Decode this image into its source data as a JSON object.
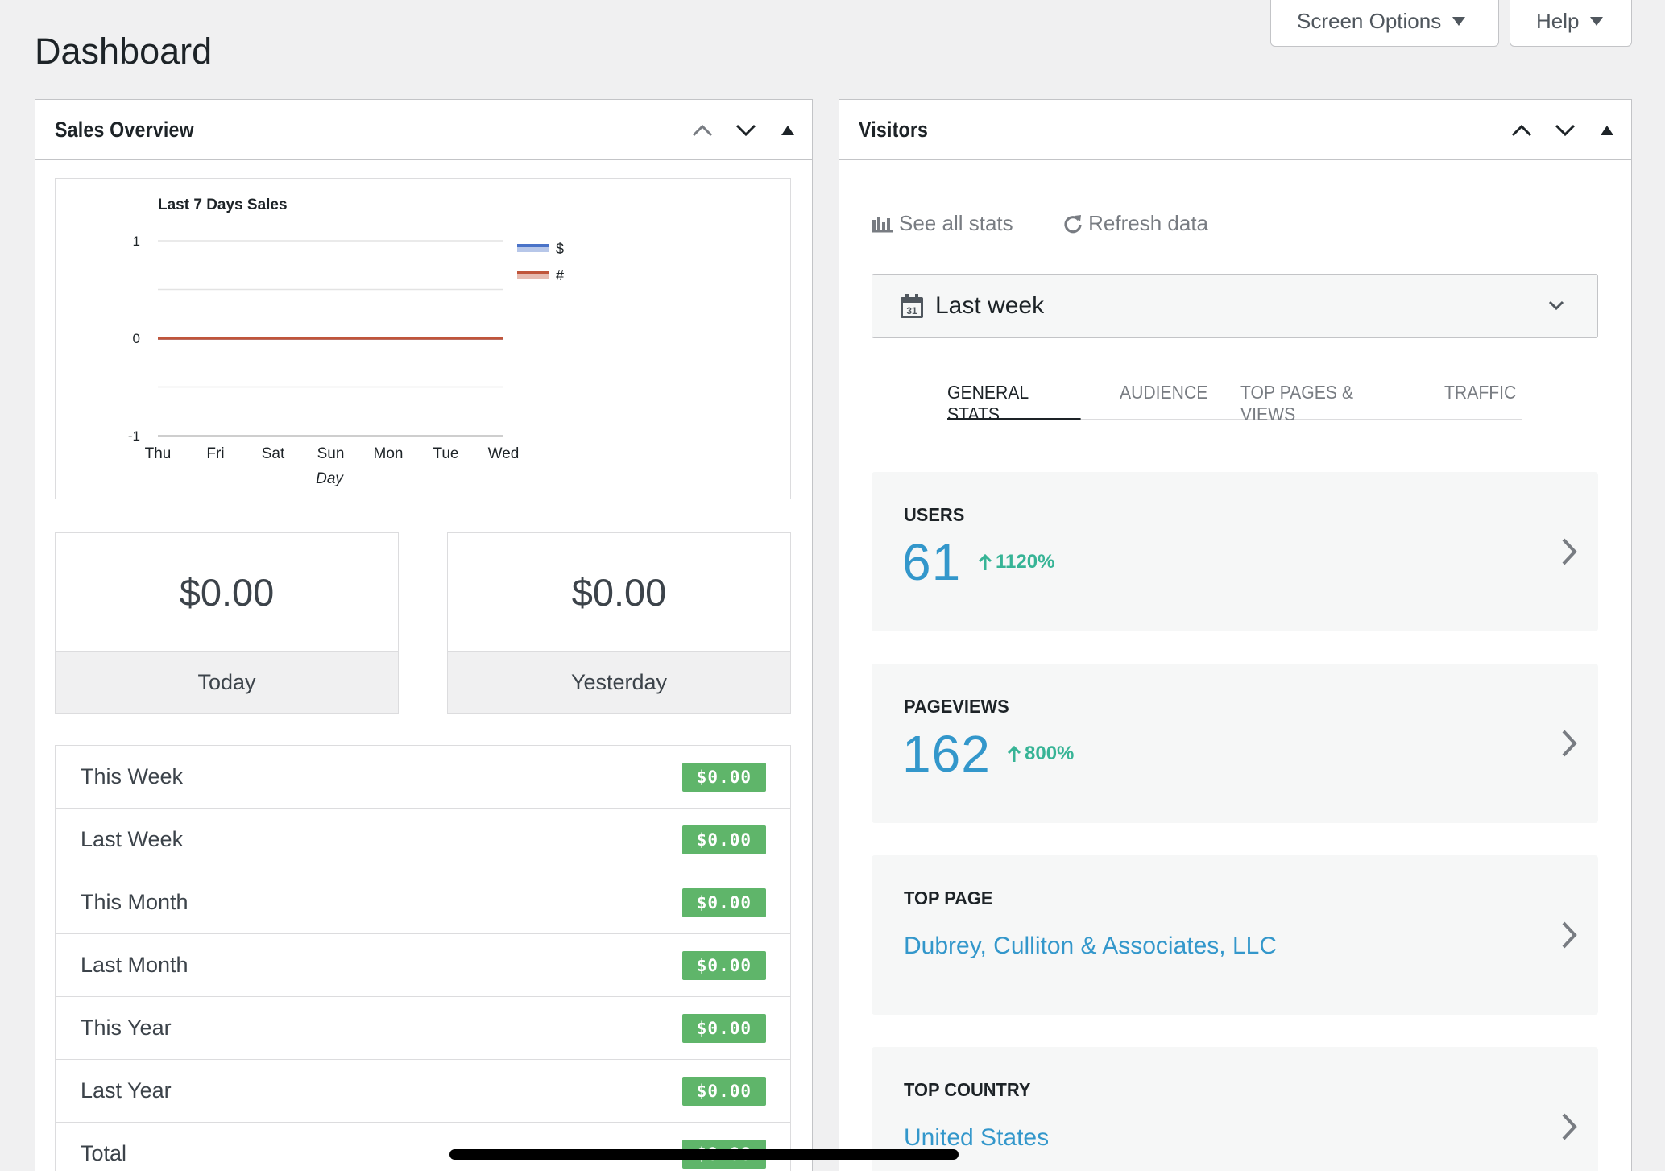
{
  "header": {
    "title": "Dashboard",
    "screen_options_label": "Screen Options",
    "help_label": "Help"
  },
  "sales_panel": {
    "title": "Sales Overview",
    "today_value": "$0.00",
    "today_label": "Today",
    "yesterday_value": "$0.00",
    "yesterday_label": "Yesterday",
    "rows": [
      {
        "label": "This Week",
        "value": "$0.00"
      },
      {
        "label": "Last Week",
        "value": "$0.00"
      },
      {
        "label": "This Month",
        "value": "$0.00"
      },
      {
        "label": "Last Month",
        "value": "$0.00"
      },
      {
        "label": "This Year",
        "value": "$0.00"
      },
      {
        "label": "Last Year",
        "value": "$0.00"
      },
      {
        "label": "Total",
        "value": "$0.00"
      }
    ]
  },
  "chart_data": {
    "type": "line",
    "title": "Last 7 Days Sales",
    "xlabel": "Day",
    "ylabel": "",
    "categories": [
      "Thu",
      "Fri",
      "Sat",
      "Sun",
      "Mon",
      "Tue",
      "Wed"
    ],
    "ylim": [
      -1,
      1
    ],
    "yticks": [
      1,
      0,
      -1
    ],
    "grid": true,
    "legend_position": "right",
    "series": [
      {
        "name": "$",
        "color": "#4a73c8",
        "values": [
          0,
          0,
          0,
          0,
          0,
          0,
          0
        ]
      },
      {
        "name": "#",
        "color": "#c0553a",
        "values": [
          0,
          0,
          0,
          0,
          0,
          0,
          0
        ]
      }
    ]
  },
  "visitors_panel": {
    "title": "Visitors",
    "see_all_stats": "See all stats",
    "refresh_data": "Refresh data",
    "calendar_day": "31",
    "date_range": "Last week",
    "tabs": [
      "GENERAL STATS",
      "AUDIENCE",
      "TOP PAGES & VIEWS",
      "TRAFFIC"
    ],
    "active_tab": "GENERAL STATS",
    "users": {
      "label": "USERS",
      "value": "61",
      "change": "1120%"
    },
    "pageviews": {
      "label": "PAGEVIEWS",
      "value": "162",
      "change": "800%"
    },
    "top_page": {
      "label": "TOP PAGE",
      "value": "Dubrey, Culliton & Associates, LLC"
    },
    "top_country": {
      "label": "TOP COUNTRY",
      "value": "United States"
    }
  },
  "colors": {
    "accent_blue": "#3397cb",
    "growth_green": "#37b496",
    "badge_green": "#5fb56a",
    "series_dollar": "#4a73c8",
    "series_count": "#c0553a"
  }
}
